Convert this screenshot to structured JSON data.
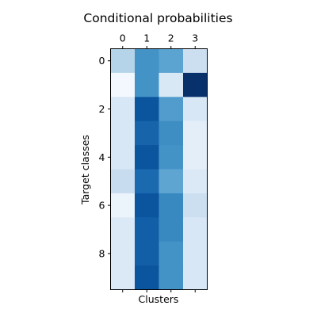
{
  "chart_data": {
    "type": "heatmap",
    "title": "Conditional probabilities",
    "xlabel": "Clusters",
    "ylabel": "Target classes",
    "x_tick_position": "top",
    "x_categories": [
      "0",
      "1",
      "2",
      "3"
    ],
    "y_categories": [
      "0",
      "1",
      "2",
      "3",
      "4",
      "5",
      "6",
      "7",
      "8",
      "9"
    ],
    "y_tick_labels": [
      "0",
      "2",
      "4",
      "6",
      "8"
    ],
    "colormap": "Blues",
    "grid": false,
    "legend": "none",
    "values": [
      [
        0.3,
        0.62,
        0.55,
        0.22
      ],
      [
        0.02,
        0.62,
        0.15,
        1.0
      ],
      [
        0.16,
        0.86,
        0.58,
        0.16
      ],
      [
        0.16,
        0.8,
        0.64,
        0.1
      ],
      [
        0.16,
        0.86,
        0.62,
        0.1
      ],
      [
        0.24,
        0.78,
        0.54,
        0.14
      ],
      [
        0.06,
        0.86,
        0.66,
        0.22
      ],
      [
        0.14,
        0.82,
        0.66,
        0.16
      ],
      [
        0.14,
        0.82,
        0.62,
        0.16
      ],
      [
        0.14,
        0.86,
        0.62,
        0.16
      ]
    ]
  }
}
